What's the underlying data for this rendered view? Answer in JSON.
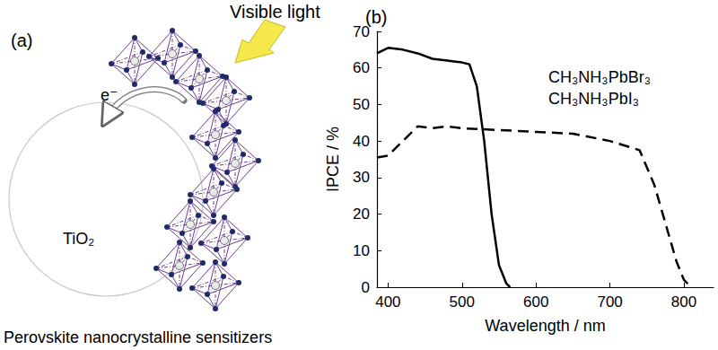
{
  "panel_a": {
    "label": "(a)",
    "light": "Visible light",
    "electron": "e⁻",
    "substrate": "TiO₂",
    "caption": "Perovskite nanocrystalline sensitizers"
  },
  "chart_data": {
    "type": "line",
    "panel_label": "(b)",
    "x_label": "Wavelength / nm",
    "y_label": "IPCE / %",
    "xlim": [
      385,
      840
    ],
    "xticks": [
      400,
      500,
      600,
      700,
      800
    ],
    "ylim": [
      0,
      70
    ],
    "yticks": [
      0,
      10,
      20,
      30,
      40,
      50,
      60,
      70
    ],
    "legend": "upper right",
    "grid": false,
    "series": [
      {
        "name": "CH₃NH₃PbBr₃",
        "color": "#000000",
        "line_style": "solid",
        "x": [
          385,
          400,
          420,
          440,
          460,
          480,
          500,
          510,
          520,
          530,
          540,
          550,
          560,
          565
        ],
        "values": [
          64,
          65.5,
          65,
          64,
          62.5,
          62,
          61.5,
          61,
          55,
          40,
          20,
          6,
          1,
          0
        ]
      },
      {
        "name": "CH₃NH₃PbI₃",
        "color": "#000000",
        "line_style": "dashed",
        "x": [
          385,
          400,
          420,
          440,
          460,
          480,
          500,
          550,
          600,
          650,
          700,
          740,
          760,
          780,
          790,
          800,
          810
        ],
        "values": [
          35.5,
          36,
          40,
          44,
          43.5,
          44,
          43.5,
          43,
          42.5,
          42,
          40,
          37.5,
          28,
          14,
          7,
          2,
          0
        ]
      }
    ]
  }
}
